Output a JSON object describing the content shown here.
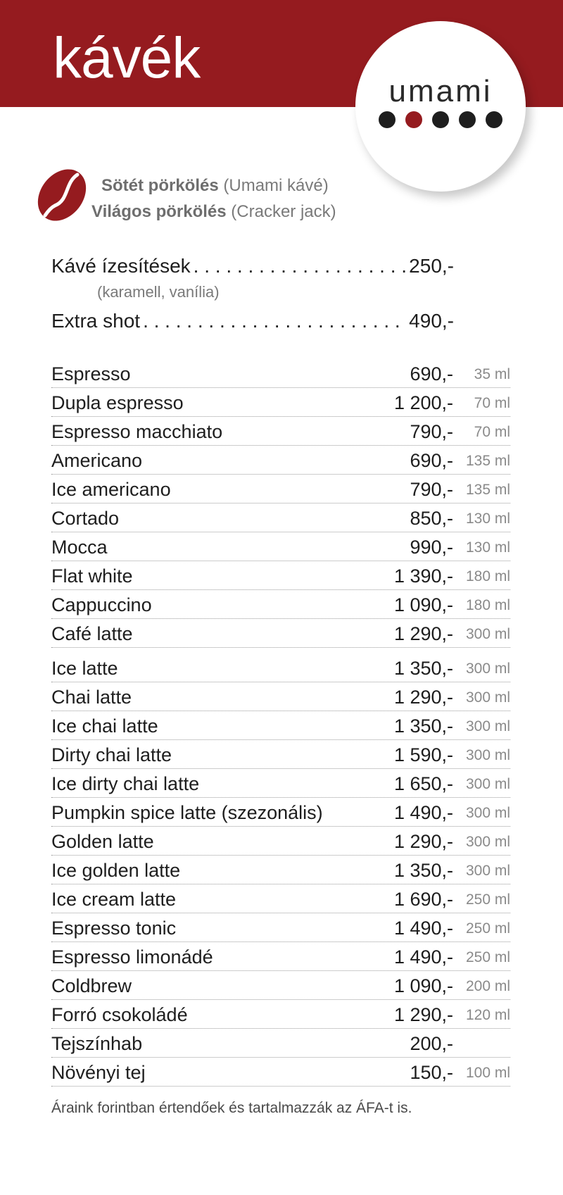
{
  "header": {
    "title": "kávék",
    "color": "#951b1f"
  },
  "logo": {
    "text": "umami",
    "dots": 5,
    "accent_dot_index": 1
  },
  "roasts": {
    "dark_bold": "Sötét pörkölés",
    "dark_note": "(Umami kávé)",
    "light_bold": "Világos pörkölés",
    "light_note": "(Cracker jack)"
  },
  "extras": [
    {
      "name": "Kávé ízesítések",
      "price": "250,-",
      "note": "(karamell, vanília)"
    },
    {
      "name": "Extra shot",
      "price": "490,-"
    }
  ],
  "menu": [
    {
      "name": "Espresso",
      "price": "690,-",
      "volume": "35 ml"
    },
    {
      "name": "Dupla espresso",
      "price": "1 200,-",
      "volume": "70 ml"
    },
    {
      "name": "Espresso macchiato",
      "price": "790,-",
      "volume": "70 ml"
    },
    {
      "name": "Americano",
      "price": "690,-",
      "volume": "135 ml"
    },
    {
      "name": "Ice americano",
      "price": "790,-",
      "volume": "135 ml"
    },
    {
      "name": "Cortado",
      "price": "850,-",
      "volume": "130 ml"
    },
    {
      "name": "Mocca",
      "price": "990,-",
      "volume": "130 ml"
    },
    {
      "name": "Flat white",
      "price": "1 390,-",
      "volume": "180 ml"
    },
    {
      "name": "Cappuccino",
      "price": "1 090,-",
      "volume": "180 ml"
    },
    {
      "name": "Café latte",
      "price": "1 290,-",
      "volume": "300 ml"
    },
    {
      "name": "Ice  latte",
      "price": "1 350,-",
      "volume": "300 ml"
    },
    {
      "name": "Chai latte",
      "price": "1 290,-",
      "volume": "300 ml"
    },
    {
      "name": "Ice chai latte",
      "price": "1 350,-",
      "volume": "300 ml"
    },
    {
      "name": "Dirty chai latte",
      "price": "1 590,-",
      "volume": "300 ml"
    },
    {
      "name": "Ice dirty chai latte",
      "price": "1 650,-",
      "volume": "300 ml"
    },
    {
      "name": "Pumpkin spice latte (szezonális)",
      "price": "1 490,-",
      "volume": "300 ml"
    },
    {
      "name": "Golden latte",
      "price": "1 290,-",
      "volume": "300 ml"
    },
    {
      "name": "Ice golden latte",
      "price": "1 350,-",
      "volume": "300 ml"
    },
    {
      "name": "Ice cream latte",
      "price": "1 690,-",
      "volume": "250 ml"
    },
    {
      "name": "Espresso tonic",
      "price": "1 490,-",
      "volume": "250 ml"
    },
    {
      "name": "Espresso limonádé",
      "price": "1 490,-",
      "volume": "250 ml"
    },
    {
      "name": "Coldbrew",
      "price": "1 090,-",
      "volume": "200 ml"
    },
    {
      "name": "Forró csokoládé",
      "price": "1 290,-",
      "volume": "120 ml"
    },
    {
      "name": "Tejszínhab",
      "price": "200,-",
      "volume": ""
    },
    {
      "name": "Növényi tej",
      "price": "150,-",
      "volume": "100 ml"
    }
  ],
  "footnote": "Áraink forintban értendőek és tartalmazzák az ÁFA-t is."
}
